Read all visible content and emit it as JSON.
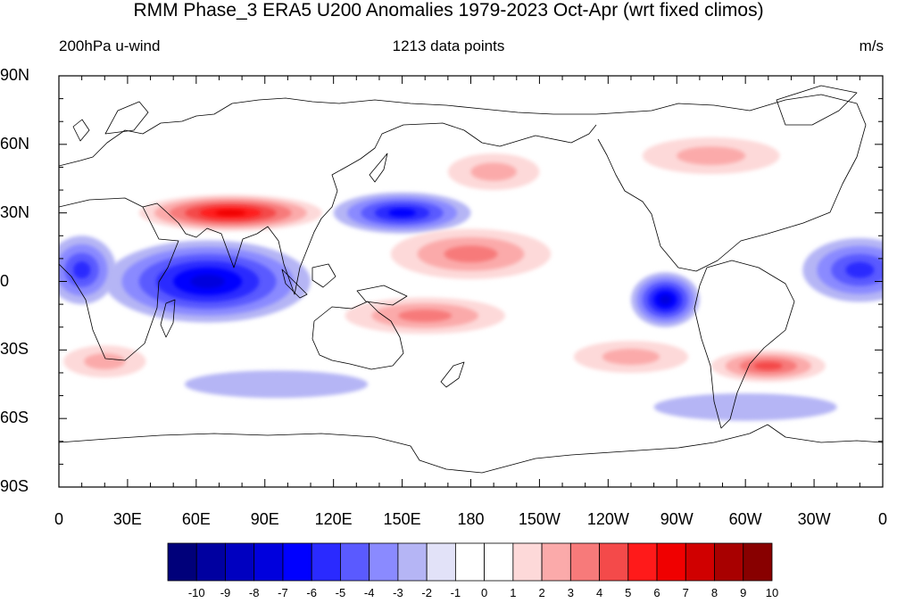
{
  "title": "RMM Phase_3 ERA5 U200 Anomalies 1979-2023 Oct-Apr (wrt fixed climos)",
  "subtitle_left": "200hPa u-wind",
  "subtitle_center": "1213 data points",
  "subtitle_right": "m/s",
  "y_ticks": [
    "90N",
    "60N",
    "30N",
    "0",
    "30S",
    "60S",
    "90S"
  ],
  "x_ticks": [
    "0",
    "30E",
    "60E",
    "90E",
    "120E",
    "150E",
    "180",
    "150W",
    "120W",
    "90W",
    "60W",
    "30W",
    "0"
  ],
  "colorbar": {
    "labels": [
      "-10",
      "-9",
      "-8",
      "-7",
      "-6",
      "-5",
      "-4",
      "-3",
      "-2",
      "-1",
      "0",
      "1",
      "2",
      "3",
      "4",
      "5",
      "6",
      "7",
      "8",
      "9",
      "10"
    ],
    "colors": [
      "#00007a",
      "#0000a0",
      "#0000c0",
      "#0000dd",
      "#0000ff",
      "#2a2aff",
      "#5a5aff",
      "#8a8aff",
      "#b5b5f5",
      "#e2e2f8",
      "#ffffff",
      "#ffffff",
      "#fdd9d9",
      "#fbaaaa",
      "#f77a7a",
      "#f44a4a",
      "#ff1a1a",
      "#f00000",
      "#d00000",
      "#a80000",
      "#880000"
    ]
  },
  "chart_data": {
    "type": "heatmap",
    "projection": "cylindrical-equidistant",
    "variable": "200hPa u-wind",
    "units": "m/s",
    "lon_range": [
      0,
      360
    ],
    "lat_range": [
      -90,
      90
    ],
    "anomaly_centers": [
      {
        "lon": 75,
        "lat": 30,
        "value": 6,
        "rx": 40,
        "ry": 8
      },
      {
        "lon": 150,
        "lat": 30,
        "value": -5,
        "rx": 30,
        "ry": 9
      },
      {
        "lon": 65,
        "lat": 0,
        "value": -6,
        "rx": 45,
        "ry": 18
      },
      {
        "lon": 10,
        "lat": 5,
        "value": -4,
        "rx": 15,
        "ry": 15
      },
      {
        "lon": 180,
        "lat": 12,
        "value": 3,
        "rx": 35,
        "ry": 11
      },
      {
        "lon": 160,
        "lat": -15,
        "value": 3,
        "rx": 35,
        "ry": 8
      },
      {
        "lon": 265,
        "lat": -8,
        "value": -6,
        "rx": 15,
        "ry": 12
      },
      {
        "lon": 350,
        "lat": 5,
        "value": -4,
        "rx": 25,
        "ry": 14
      },
      {
        "lon": 310,
        "lat": -37,
        "value": 4,
        "rx": 25,
        "ry": 7
      },
      {
        "lon": 250,
        "lat": -33,
        "value": 2,
        "rx": 25,
        "ry": 7
      },
      {
        "lon": 190,
        "lat": 48,
        "value": 2,
        "rx": 20,
        "ry": 8
      },
      {
        "lon": 285,
        "lat": 55,
        "value": 2,
        "rx": 30,
        "ry": 8
      },
      {
        "lon": 20,
        "lat": -35,
        "value": 2,
        "rx": 18,
        "ry": 7
      },
      {
        "lon": 95,
        "lat": -45,
        "value": -1,
        "rx": 40,
        "ry": 6
      },
      {
        "lon": 300,
        "lat": -55,
        "value": -1,
        "rx": 40,
        "ry": 6
      }
    ]
  }
}
